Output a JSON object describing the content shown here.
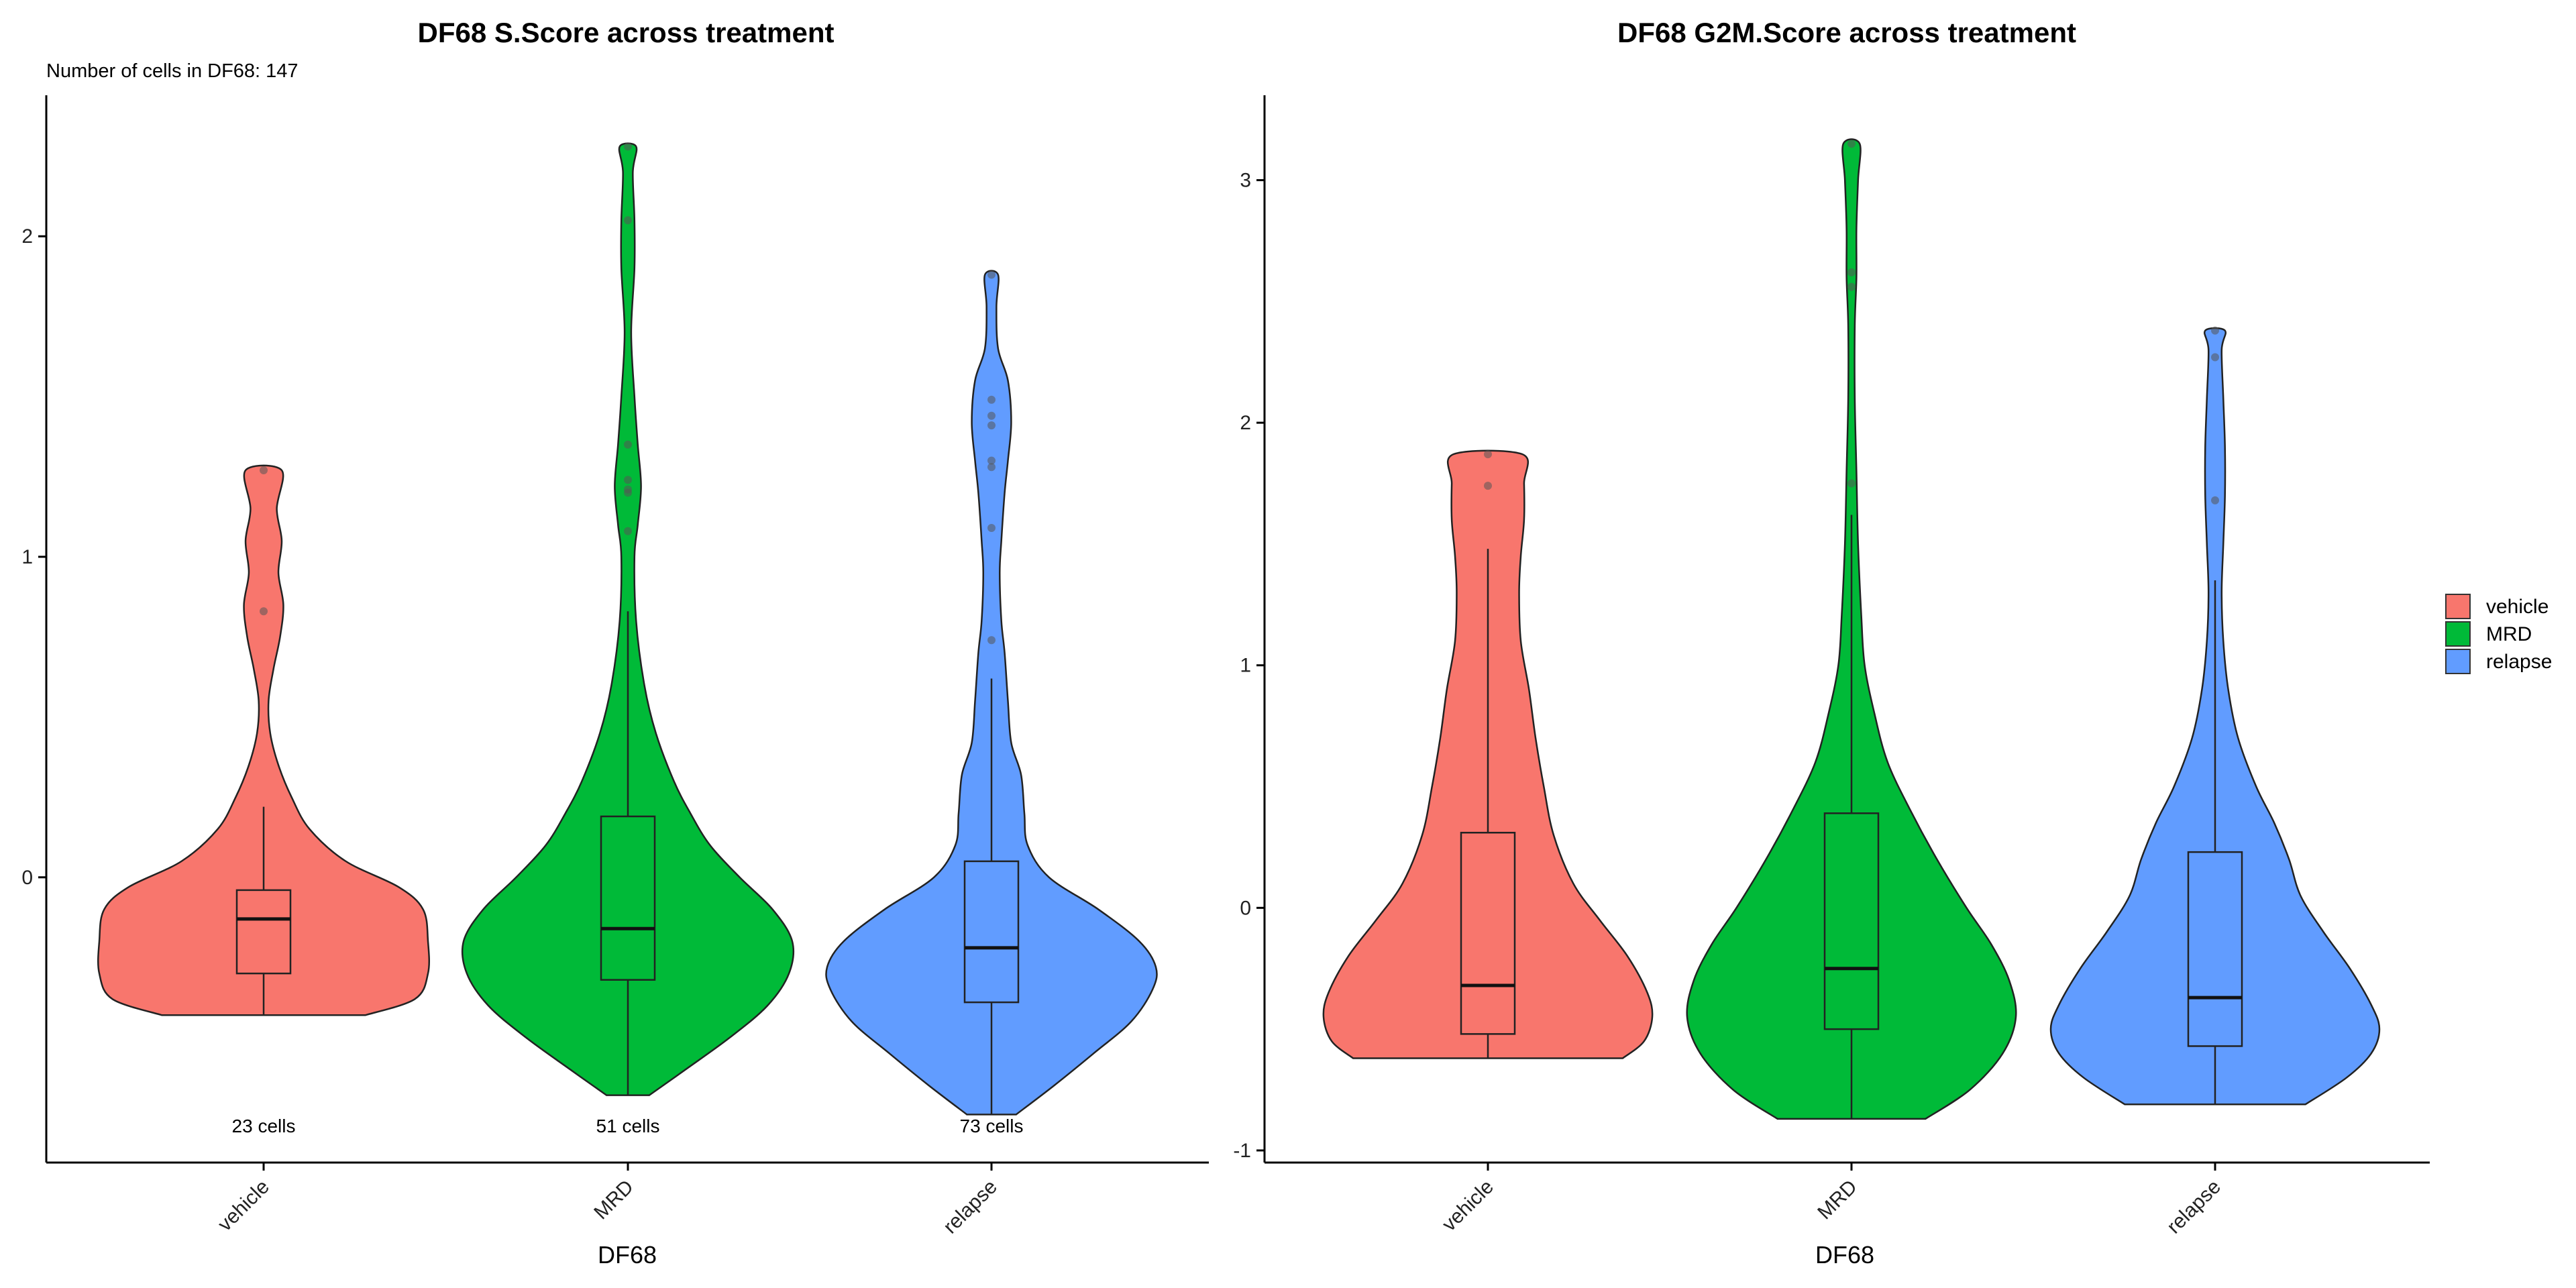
{
  "colors": {
    "vehicle": "#F8766D",
    "MRD": "#00BA38",
    "relapse": "#619CFF"
  },
  "legend": {
    "items": [
      "vehicle",
      "MRD",
      "relapse"
    ]
  },
  "chart_data": [
    {
      "type": "violin",
      "title": "DF68 S.Score across treatment",
      "subtitle": "Number of cells in DF68: 147",
      "xlabel": "DF68",
      "ylabel": "",
      "ylim": [
        -0.89,
        2.44
      ],
      "yticks": [
        0,
        1,
        2
      ],
      "categories": [
        "vehicle",
        "MRD",
        "relapse"
      ],
      "cell_counts": [
        "23 cells",
        "51 cells",
        "73 cells"
      ],
      "groups": [
        {
          "name": "vehicle",
          "min": -0.43,
          "max": 1.27,
          "box": {
            "lower_whisker": -0.43,
            "q1": -0.3,
            "median": -0.13,
            "q3": -0.04,
            "upper_whisker": 0.22
          },
          "outliers": [
            0.83,
            1.27
          ],
          "density": [
            [
              -0.43,
              0.62
            ],
            [
              -0.38,
              0.92
            ],
            [
              -0.3,
              1.0
            ],
            [
              -0.2,
              1.0
            ],
            [
              -0.1,
              0.97
            ],
            [
              -0.03,
              0.82
            ],
            [
              0.05,
              0.5
            ],
            [
              0.15,
              0.28
            ],
            [
              0.25,
              0.17
            ],
            [
              0.35,
              0.09
            ],
            [
              0.45,
              0.04
            ],
            [
              0.55,
              0.03
            ],
            [
              0.65,
              0.06
            ],
            [
              0.75,
              0.1
            ],
            [
              0.85,
              0.12
            ],
            [
              0.95,
              0.09
            ],
            [
              1.05,
              0.11
            ],
            [
              1.15,
              0.08
            ],
            [
              1.27,
              0.11
            ]
          ]
        },
        {
          "name": "MRD",
          "min": -0.68,
          "max": 2.28,
          "box": {
            "lower_whisker": -0.68,
            "q1": -0.32,
            "median": -0.16,
            "q3": 0.19,
            "upper_whisker": 0.83
          },
          "outliers": [
            1.08,
            1.2,
            1.21,
            1.24,
            1.35,
            2.05,
            2.28
          ],
          "density": [
            [
              -0.68,
              0.13
            ],
            [
              -0.6,
              0.35
            ],
            [
              -0.5,
              0.62
            ],
            [
              -0.4,
              0.85
            ],
            [
              -0.3,
              0.98
            ],
            [
              -0.2,
              1.0
            ],
            [
              -0.1,
              0.88
            ],
            [
              0.0,
              0.68
            ],
            [
              0.1,
              0.5
            ],
            [
              0.2,
              0.38
            ],
            [
              0.3,
              0.28
            ],
            [
              0.45,
              0.17
            ],
            [
              0.6,
              0.1
            ],
            [
              0.8,
              0.05
            ],
            [
              1.0,
              0.04
            ],
            [
              1.1,
              0.06
            ],
            [
              1.22,
              0.08
            ],
            [
              1.35,
              0.06
            ],
            [
              1.5,
              0.04
            ],
            [
              1.7,
              0.02
            ],
            [
              1.9,
              0.04
            ],
            [
              2.05,
              0.04
            ],
            [
              2.2,
              0.03
            ],
            [
              2.28,
              0.05
            ]
          ]
        },
        {
          "name": "relapse",
          "min": -0.74,
          "max": 1.88,
          "box": {
            "lower_whisker": -0.74,
            "q1": -0.39,
            "median": -0.22,
            "q3": 0.05,
            "upper_whisker": 0.62
          },
          "outliers": [
            0.74,
            1.09,
            1.28,
            1.3,
            1.41,
            1.44,
            1.49,
            1.88
          ],
          "density": [
            [
              -0.74,
              0.15
            ],
            [
              -0.65,
              0.38
            ],
            [
              -0.55,
              0.62
            ],
            [
              -0.45,
              0.85
            ],
            [
              -0.35,
              0.98
            ],
            [
              -0.28,
              1.0
            ],
            [
              -0.2,
              0.9
            ],
            [
              -0.1,
              0.65
            ],
            [
              0.0,
              0.35
            ],
            [
              0.1,
              0.22
            ],
            [
              0.2,
              0.2
            ],
            [
              0.32,
              0.18
            ],
            [
              0.42,
              0.12
            ],
            [
              0.55,
              0.1
            ],
            [
              0.7,
              0.08
            ],
            [
              0.8,
              0.06
            ],
            [
              0.95,
              0.05
            ],
            [
              1.05,
              0.06
            ],
            [
              1.2,
              0.08
            ],
            [
              1.3,
              0.1
            ],
            [
              1.42,
              0.12
            ],
            [
              1.55,
              0.1
            ],
            [
              1.65,
              0.04
            ],
            [
              1.78,
              0.03
            ],
            [
              1.88,
              0.04
            ]
          ]
        }
      ]
    },
    {
      "type": "violin",
      "title": "DF68 G2M.Score across treatment",
      "xlabel": "DF68",
      "ylabel": "",
      "ylim": [
        -1.05,
        3.35
      ],
      "yticks": [
        -1,
        0,
        1,
        2,
        3
      ],
      "categories": [
        "vehicle",
        "MRD",
        "relapse"
      ],
      "groups": [
        {
          "name": "vehicle",
          "min": -0.62,
          "max": 1.87,
          "box": {
            "lower_whisker": -0.62,
            "q1": -0.52,
            "median": -0.32,
            "q3": 0.31,
            "upper_whisker": 1.48
          },
          "outliers": [
            1.74,
            1.87
          ],
          "density": [
            [
              -0.62,
              0.82
            ],
            [
              -0.55,
              0.95
            ],
            [
              -0.45,
              1.0
            ],
            [
              -0.35,
              0.97
            ],
            [
              -0.2,
              0.85
            ],
            [
              -0.05,
              0.68
            ],
            [
              0.1,
              0.52
            ],
            [
              0.3,
              0.4
            ],
            [
              0.5,
              0.34
            ],
            [
              0.7,
              0.29
            ],
            [
              0.9,
              0.25
            ],
            [
              1.1,
              0.2
            ],
            [
              1.3,
              0.19
            ],
            [
              1.45,
              0.2
            ],
            [
              1.6,
              0.22
            ],
            [
              1.75,
              0.22
            ],
            [
              1.87,
              0.21
            ]
          ]
        },
        {
          "name": "MRD",
          "min": -0.87,
          "max": 3.15,
          "box": {
            "lower_whisker": -0.87,
            "q1": -0.5,
            "median": -0.25,
            "q3": 0.39,
            "upper_whisker": 1.62
          },
          "outliers": [
            1.75,
            2.56,
            2.62,
            3.15
          ],
          "density": [
            [
              -0.87,
              0.45
            ],
            [
              -0.75,
              0.72
            ],
            [
              -0.6,
              0.92
            ],
            [
              -0.45,
              1.0
            ],
            [
              -0.3,
              0.96
            ],
            [
              -0.15,
              0.85
            ],
            [
              0.0,
              0.7
            ],
            [
              0.2,
              0.52
            ],
            [
              0.4,
              0.36
            ],
            [
              0.6,
              0.22
            ],
            [
              0.8,
              0.14
            ],
            [
              1.0,
              0.08
            ],
            [
              1.2,
              0.06
            ],
            [
              1.5,
              0.04
            ],
            [
              1.8,
              0.03
            ],
            [
              2.1,
              0.02
            ],
            [
              2.4,
              0.02
            ],
            [
              2.6,
              0.03
            ],
            [
              2.8,
              0.03
            ],
            [
              3.0,
              0.04
            ],
            [
              3.15,
              0.05
            ]
          ]
        },
        {
          "name": "relapse",
          "min": -0.81,
          "max": 2.38,
          "box": {
            "lower_whisker": -0.81,
            "q1": -0.57,
            "median": -0.37,
            "q3": 0.23,
            "upper_whisker": 1.35
          },
          "outliers": [
            1.68,
            2.27,
            2.38
          ],
          "density": [
            [
              -0.81,
              0.55
            ],
            [
              -0.7,
              0.8
            ],
            [
              -0.6,
              0.95
            ],
            [
              -0.5,
              1.0
            ],
            [
              -0.4,
              0.95
            ],
            [
              -0.25,
              0.82
            ],
            [
              -0.1,
              0.66
            ],
            [
              0.05,
              0.52
            ],
            [
              0.2,
              0.45
            ],
            [
              0.35,
              0.36
            ],
            [
              0.5,
              0.25
            ],
            [
              0.7,
              0.14
            ],
            [
              0.9,
              0.08
            ],
            [
              1.1,
              0.05
            ],
            [
              1.3,
              0.04
            ],
            [
              1.5,
              0.05
            ],
            [
              1.7,
              0.06
            ],
            [
              1.9,
              0.06
            ],
            [
              2.1,
              0.05
            ],
            [
              2.3,
              0.04
            ],
            [
              2.38,
              0.06
            ]
          ]
        }
      ]
    }
  ]
}
